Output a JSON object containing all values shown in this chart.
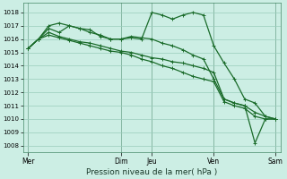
{
  "bg_color": "#cceee4",
  "grid_color": "#99ccbb",
  "line_color": "#1a6b2a",
  "title": "Pression niveau de la mer( hPa )",
  "ylim": [
    1007.5,
    1018.7
  ],
  "yticks": [
    1008,
    1009,
    1010,
    1011,
    1012,
    1013,
    1014,
    1015,
    1016,
    1017,
    1018
  ],
  "xtick_labels": [
    "Mer",
    "Dim",
    "Jeu",
    "Ven",
    "Sam"
  ],
  "xtick_positions": [
    0,
    9,
    12,
    18,
    24
  ],
  "vlines": [
    0,
    9,
    12,
    18,
    24
  ],
  "series1": [
    [
      0,
      1015.3
    ],
    [
      1,
      1016.0
    ],
    [
      2,
      1016.8
    ],
    [
      3,
      1016.5
    ],
    [
      4,
      1017.0
    ],
    [
      5,
      1016.8
    ],
    [
      6,
      1016.7
    ],
    [
      7,
      1016.2
    ],
    [
      8,
      1016.0
    ],
    [
      9,
      1016.0
    ],
    [
      10,
      1016.1
    ],
    [
      11,
      1016.0
    ],
    [
      12,
      1018.0
    ],
    [
      13,
      1017.8
    ],
    [
      14,
      1017.5
    ],
    [
      15,
      1017.8
    ],
    [
      16,
      1018.0
    ],
    [
      17,
      1017.8
    ],
    [
      18,
      1015.5
    ],
    [
      19,
      1014.2
    ],
    [
      20,
      1013.0
    ],
    [
      21,
      1011.5
    ],
    [
      22,
      1011.2
    ],
    [
      23,
      1010.2
    ],
    [
      24,
      1010.0
    ]
  ],
  "series2": [
    [
      0,
      1015.3
    ],
    [
      1,
      1016.0
    ],
    [
      2,
      1016.5
    ],
    [
      3,
      1016.2
    ],
    [
      4,
      1016.0
    ],
    [
      5,
      1015.8
    ],
    [
      6,
      1015.7
    ],
    [
      7,
      1015.5
    ],
    [
      8,
      1015.3
    ],
    [
      9,
      1015.1
    ],
    [
      10,
      1015.0
    ],
    [
      11,
      1014.8
    ],
    [
      12,
      1014.6
    ],
    [
      13,
      1014.5
    ],
    [
      14,
      1014.3
    ],
    [
      15,
      1014.2
    ],
    [
      16,
      1014.0
    ],
    [
      17,
      1013.8
    ],
    [
      18,
      1013.5
    ],
    [
      19,
      1011.5
    ],
    [
      20,
      1011.2
    ],
    [
      21,
      1011.0
    ],
    [
      22,
      1010.5
    ],
    [
      23,
      1010.2
    ],
    [
      24,
      1010.0
    ]
  ],
  "series3": [
    [
      0,
      1015.3
    ],
    [
      1,
      1016.0
    ],
    [
      2,
      1016.3
    ],
    [
      3,
      1016.1
    ],
    [
      4,
      1015.9
    ],
    [
      5,
      1015.7
    ],
    [
      6,
      1015.5
    ],
    [
      7,
      1015.3
    ],
    [
      8,
      1015.1
    ],
    [
      9,
      1015.0
    ],
    [
      10,
      1014.8
    ],
    [
      11,
      1014.5
    ],
    [
      12,
      1014.3
    ],
    [
      13,
      1014.0
    ],
    [
      14,
      1013.8
    ],
    [
      15,
      1013.5
    ],
    [
      16,
      1013.2
    ],
    [
      17,
      1013.0
    ],
    [
      18,
      1012.8
    ],
    [
      19,
      1011.3
    ],
    [
      20,
      1011.0
    ],
    [
      21,
      1010.8
    ],
    [
      22,
      1010.2
    ],
    [
      23,
      1010.0
    ],
    [
      24,
      1010.0
    ]
  ],
  "series4": [
    [
      0,
      1015.3
    ],
    [
      1,
      1016.0
    ],
    [
      2,
      1017.0
    ],
    [
      3,
      1017.2
    ],
    [
      4,
      1017.0
    ],
    [
      5,
      1016.8
    ],
    [
      6,
      1016.5
    ],
    [
      7,
      1016.3
    ],
    [
      8,
      1016.0
    ],
    [
      9,
      1016.0
    ],
    [
      10,
      1016.2
    ],
    [
      11,
      1016.1
    ],
    [
      12,
      1016.0
    ],
    [
      13,
      1015.7
    ],
    [
      14,
      1015.5
    ],
    [
      15,
      1015.2
    ],
    [
      16,
      1014.8
    ],
    [
      17,
      1014.5
    ],
    [
      18,
      1013.0
    ],
    [
      19,
      1011.5
    ],
    [
      20,
      1011.2
    ],
    [
      21,
      1011.0
    ],
    [
      22,
      1008.2
    ],
    [
      23,
      1010.0
    ],
    [
      24,
      1010.0
    ]
  ]
}
